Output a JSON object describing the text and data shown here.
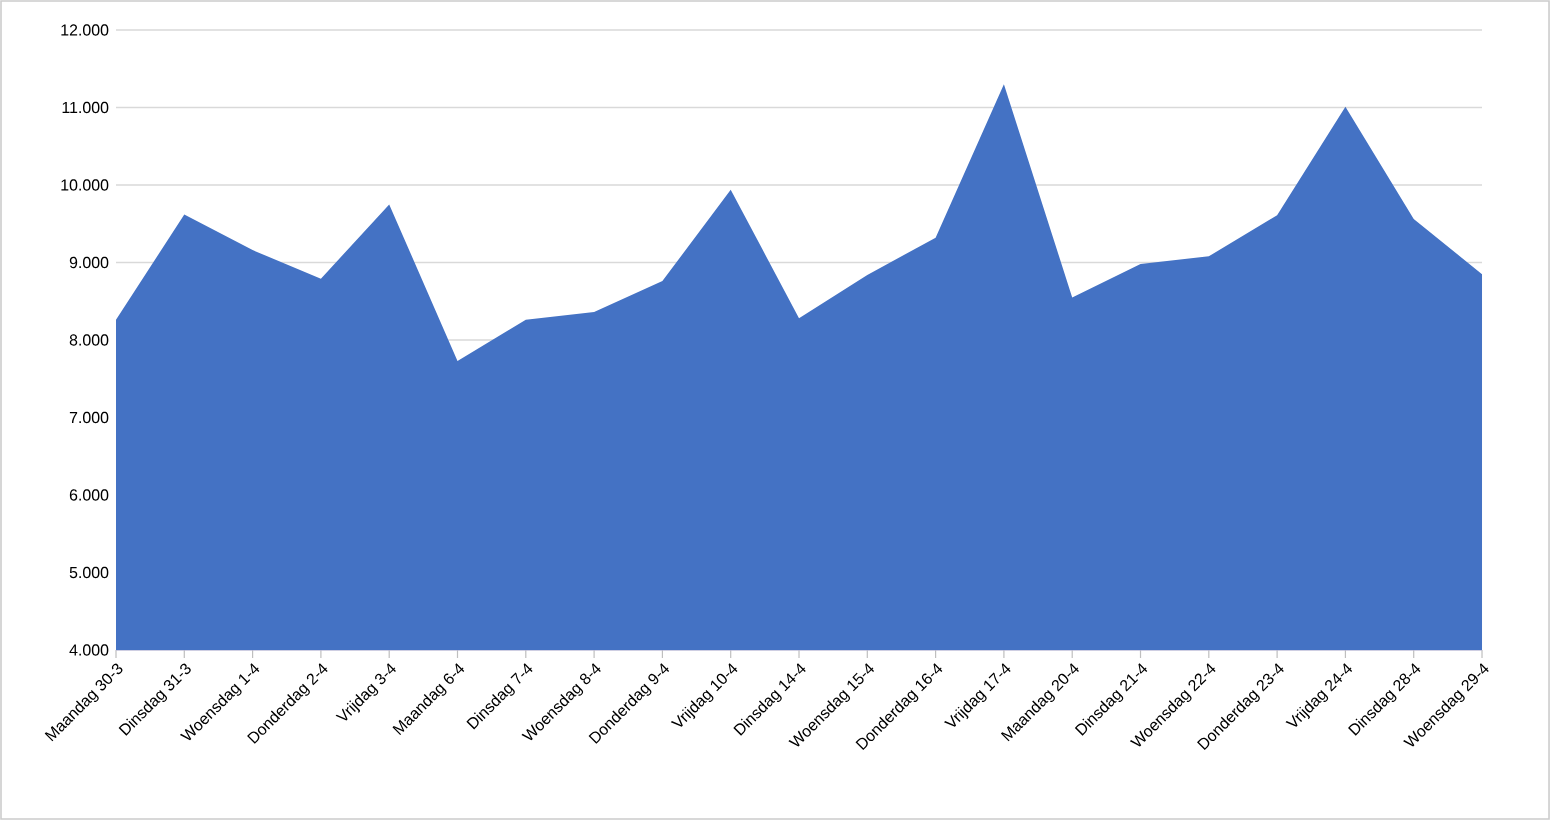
{
  "chart_data": {
    "type": "area",
    "categories": [
      "Maandag 30-3",
      "Dinsdag 31-3",
      "Woensdag 1-4",
      "Donderdag 2-4",
      "Vrijdag 3-4",
      "Maandag 6-4",
      "Dinsdag 7-4",
      "Woensdag 8-4",
      "Donderdag 9-4",
      "Vrijdag 10-4",
      "Dinsdag 14-4",
      "Woensdag 15-4",
      "Donderdag 16-4",
      "Vrijdag 17-4",
      "Maandag 20-4",
      "Dinsdag 21-4",
      "Woensdag 22-4",
      "Donderdag 23-4",
      "Vrijdag 24-4",
      "Dinsdag 28-4",
      "Woensdag 29-4"
    ],
    "values": [
      8260,
      9620,
      9160,
      8790,
      9750,
      7730,
      8260,
      8360,
      8760,
      9940,
      8280,
      8840,
      9320,
      11300,
      8550,
      8980,
      9080,
      9610,
      11010,
      9560,
      8850
    ],
    "color": "#4472c4",
    "ylim": [
      4000,
      12000
    ],
    "yticks": [
      {
        "value": 4000,
        "label": "4.000"
      },
      {
        "value": 5000,
        "label": "5.000"
      },
      {
        "value": 6000,
        "label": "6.000"
      },
      {
        "value": 7000,
        "label": "7.000"
      },
      {
        "value": 8000,
        "label": "8.000"
      },
      {
        "value": 9000,
        "label": "9.000"
      },
      {
        "value": 10000,
        "label": "10.000"
      },
      {
        "value": 11000,
        "label": "11.000"
      },
      {
        "value": 12000,
        "label": "12.000"
      }
    ],
    "grid": "y"
  }
}
